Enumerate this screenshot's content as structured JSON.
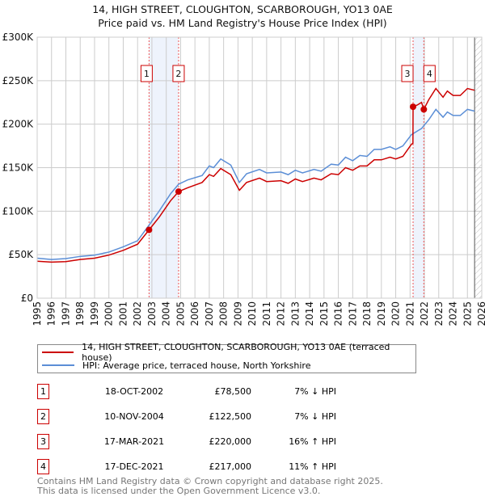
{
  "chart_data": {
    "type": "line",
    "title": "14, HIGH STREET, CLOUGHTON, SCARBOROUGH, YO13 0AE",
    "subtitle": "Price paid vs. HM Land Registry's House Price Index (HPI)",
    "xlim": [
      1995,
      2026
    ],
    "ylim": [
      0,
      300000
    ],
    "yticks": [
      {
        "v": 0,
        "label": "£0"
      },
      {
        "v": 50000,
        "label": "£50K"
      },
      {
        "v": 100000,
        "label": "£100K"
      },
      {
        "v": 150000,
        "label": "£150K"
      },
      {
        "v": 200000,
        "label": "£200K"
      },
      {
        "v": 250000,
        "label": "£250K"
      },
      {
        "v": 300000,
        "label": "£300K"
      }
    ],
    "xticks": [
      "1995",
      "1996",
      "1997",
      "1998",
      "1999",
      "2000",
      "2001",
      "2002",
      "2003",
      "2004",
      "2005",
      "2006",
      "2007",
      "2008",
      "2009",
      "2010",
      "2011",
      "2012",
      "2013",
      "2014",
      "2015",
      "2016",
      "2017",
      "2018",
      "2019",
      "2020",
      "2021",
      "2022",
      "2023",
      "2024",
      "2025",
      "2026"
    ],
    "grid": true,
    "series": [
      {
        "name": "14, HIGH STREET, CLOUGHTON, SCARBOROUGH, YO13 0AE (terraced house)",
        "color": "#cc0000",
        "x": [
          1995,
          1996,
          1997,
          1998,
          1999,
          2000,
          2001,
          2002,
          2002.8,
          2003.5,
          2004.3,
          2004.86,
          2005.5,
          2006.5,
          2007,
          2007.3,
          2007.8,
          2008.5,
          2009.1,
          2009.6,
          2010.5,
          2011,
          2012,
          2012.5,
          2013,
          2013.5,
          2014.3,
          2014.8,
          2015.5,
          2016,
          2016.5,
          2017,
          2017.5,
          2018,
          2018.5,
          2019,
          2019.6,
          2020,
          2020.5,
          2021.1,
          2021.2,
          2021.21,
          2021.5,
          2021.8,
          2021.96,
          2022.3,
          2022.8,
          2023.3,
          2023.6,
          2024,
          2024.5,
          2025,
          2025.5
        ],
        "y": [
          42500,
          41500,
          42000,
          44500,
          46000,
          49500,
          55000,
          62000,
          78500,
          93000,
          112000,
          122500,
          127000,
          133000,
          142000,
          140000,
          149000,
          142000,
          124000,
          133000,
          138000,
          134000,
          135000,
          132000,
          137000,
          134000,
          138000,
          136000,
          143000,
          142000,
          150000,
          147000,
          152000,
          152000,
          159000,
          159000,
          162000,
          160000,
          163000,
          177000,
          178000,
          220000,
          222000,
          225000,
          217000,
          228000,
          241000,
          231000,
          238000,
          233000,
          233000,
          241000,
          239000
        ]
      },
      {
        "name": "HPI: Average price, terraced house, North Yorkshire",
        "color": "#5b8ed6",
        "x": [
          1995,
          1996,
          1997,
          1998,
          1999,
          2000,
          2001,
          2002,
          2002.8,
          2003.5,
          2004.3,
          2004.86,
          2005.5,
          2006.5,
          2007,
          2007.3,
          2007.8,
          2008.5,
          2009.1,
          2009.6,
          2010.5,
          2011,
          2012,
          2012.5,
          2013,
          2013.5,
          2014.3,
          2014.8,
          2015.5,
          2016,
          2016.5,
          2017,
          2017.5,
          2018,
          2018.5,
          2019,
          2019.6,
          2020,
          2020.5,
          2021.1,
          2021.5,
          2021.8,
          2022.3,
          2022.8,
          2023.3,
          2023.6,
          2024,
          2024.5,
          2025,
          2025.5
        ],
        "y": [
          46000,
          44500,
          45500,
          48000,
          49500,
          53000,
          59000,
          66000,
          84000,
          100000,
          120000,
          131000,
          136000,
          141000,
          152000,
          150000,
          160000,
          153000,
          133000,
          143000,
          148000,
          144000,
          145000,
          142000,
          147000,
          144000,
          148000,
          146000,
          154000,
          153000,
          162000,
          158000,
          164000,
          163000,
          171000,
          171000,
          174000,
          171000,
          175000,
          188000,
          192000,
          195000,
          205000,
          217000,
          208000,
          214000,
          210000,
          210000,
          217000,
          215000
        ]
      }
    ],
    "sales": [
      {
        "id": "1",
        "x": 2002.8,
        "y": 78500
      },
      {
        "id": "2",
        "x": 2004.86,
        "y": 122500
      },
      {
        "id": "3",
        "x": 2021.21,
        "y": 220000
      },
      {
        "id": "4",
        "x": 2021.96,
        "y": 217000
      }
    ]
  },
  "legend": {
    "property": "14, HIGH STREET, CLOUGHTON, SCARBOROUGH, YO13 0AE (terraced house)",
    "hpi": "HPI: Average price, terraced house, North Yorkshire"
  },
  "transactions": [
    {
      "id": "1",
      "date": "18-OCT-2002",
      "price": "£78,500",
      "hpi": "7% ↓ HPI"
    },
    {
      "id": "2",
      "date": "10-NOV-2004",
      "price": "£122,500",
      "hpi": "7% ↓ HPI"
    },
    {
      "id": "3",
      "date": "17-MAR-2021",
      "price": "£220,000",
      "hpi": "16% ↑ HPI"
    },
    {
      "id": "4",
      "date": "17-DEC-2021",
      "price": "£217,000",
      "hpi": "11% ↑ HPI"
    }
  ],
  "footer": {
    "line1": "Contains HM Land Registry data © Crown copyright and database right 2025.",
    "line2": "This data is licensed under the Open Government Licence v3.0."
  }
}
